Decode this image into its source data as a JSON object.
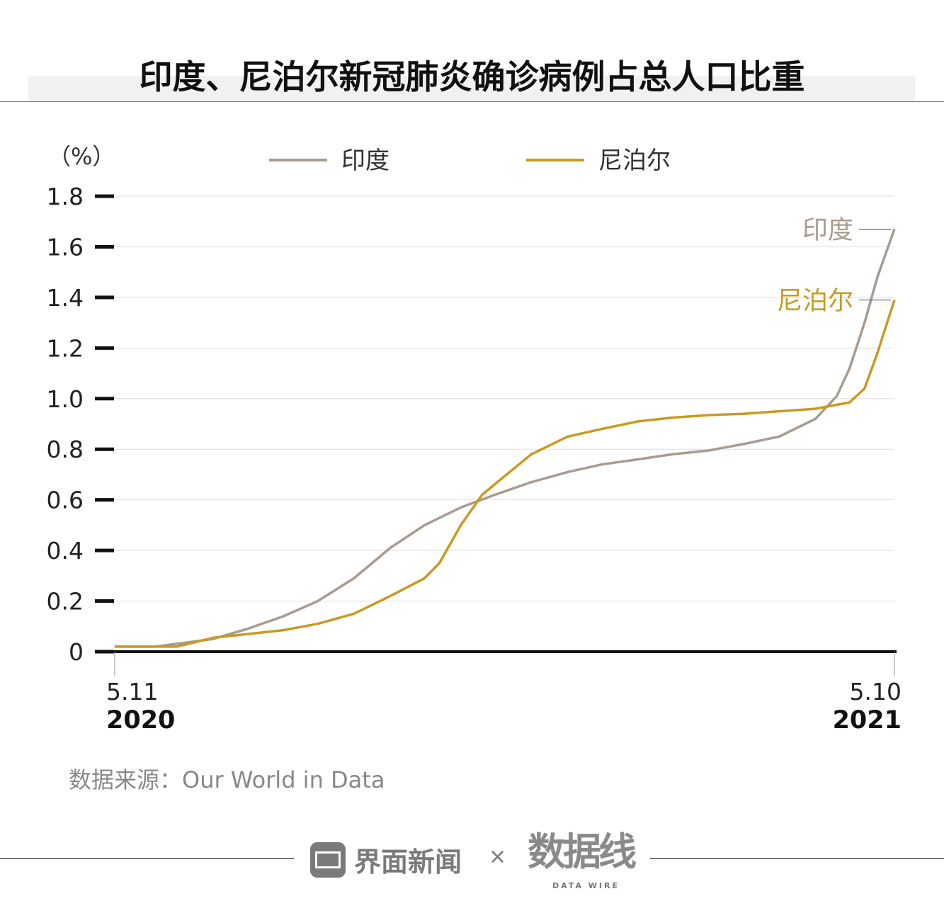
{
  "title": "印度、尼泊尔新冠肺炎确诊病例占总人口比重",
  "source": "数据来源：Our World in Data",
  "footer": {
    "brand": "界面新闻",
    "times": "×",
    "logo": "数据线",
    "logo_sub": "DATA WIRE"
  },
  "watermark": "数据线",
  "chart_data": {
    "type": "line",
    "title": "印度、尼泊尔新冠肺炎确诊病例占总人口比重",
    "ylabel": "（%）",
    "ylim": [
      0,
      1.8
    ],
    "yticks": [
      "0",
      "0.2",
      "0.4",
      "0.6",
      "0.8",
      "1.0",
      "1.2",
      "1.4",
      "1.6",
      "1.8"
    ],
    "ytick_values": [
      0,
      0.2,
      0.4,
      0.6,
      0.8,
      1.0,
      1.2,
      1.4,
      1.6,
      1.8
    ],
    "xlim": [
      0,
      365
    ],
    "xticks": [
      {
        "day": "5.11",
        "year": "2020",
        "value": 0
      },
      {
        "day": "5.10",
        "year": "2021",
        "value": 365
      }
    ],
    "x_unit": "days since 2020-05-11",
    "grid": true,
    "legend_position": "top",
    "series": [
      {
        "name": "印度",
        "color": "#a89b90",
        "end_label": "印度",
        "x": [
          0,
          19,
          46,
          62,
          79,
          95,
          112,
          129,
          145,
          162,
          178,
          195,
          212,
          228,
          245,
          261,
          278,
          294,
          311,
          328,
          338,
          344,
          351,
          357,
          365
        ],
        "y": [
          0.02,
          0.02,
          0.05,
          0.09,
          0.14,
          0.2,
          0.29,
          0.41,
          0.5,
          0.57,
          0.62,
          0.67,
          0.71,
          0.74,
          0.76,
          0.78,
          0.795,
          0.82,
          0.85,
          0.92,
          1.01,
          1.12,
          1.3,
          1.48,
          1.67
        ]
      },
      {
        "name": "尼泊尔",
        "color": "#c99a22",
        "end_label": "尼泊尔",
        "x": [
          0,
          29,
          46,
          79,
          95,
          112,
          129,
          145,
          152,
          162,
          172,
          182,
          195,
          212,
          228,
          245,
          261,
          278,
          294,
          311,
          328,
          344,
          351,
          357,
          365
        ],
        "y": [
          0.02,
          0.02,
          0.055,
          0.085,
          0.11,
          0.15,
          0.22,
          0.29,
          0.35,
          0.5,
          0.62,
          0.69,
          0.78,
          0.85,
          0.88,
          0.91,
          0.925,
          0.935,
          0.94,
          0.95,
          0.96,
          0.985,
          1.04,
          1.18,
          1.39
        ]
      }
    ]
  }
}
